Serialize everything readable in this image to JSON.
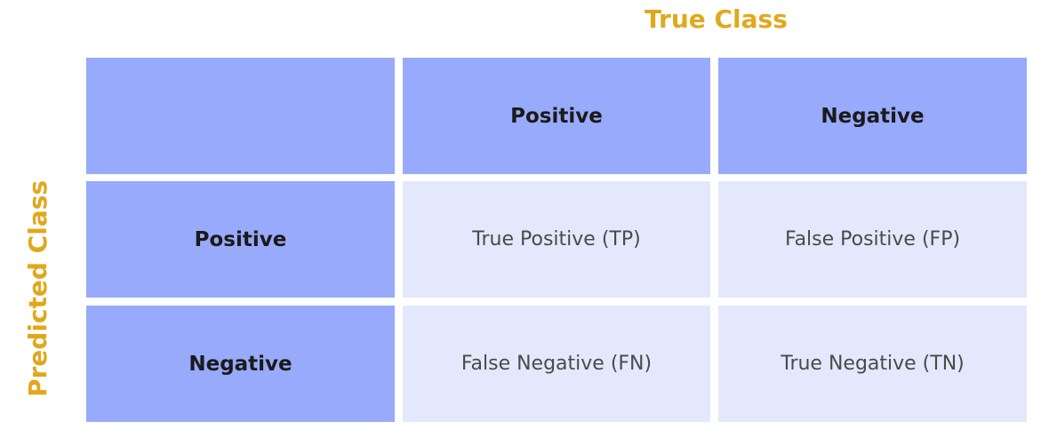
{
  "colors": {
    "axis_title": "#e0a81c",
    "header_cell": "#98aafb",
    "body_cell": "#e3e8fc",
    "header_text": "#1a1a1a",
    "body_text": "#4a4a4a"
  },
  "axis": {
    "top_title": "True Class",
    "left_title": "Predicted Class"
  },
  "columns": [
    "Positive",
    "Negative"
  ],
  "rows": [
    {
      "label": "Positive",
      "cells": [
        "True Positive (TP)",
        "False Positive (FP)"
      ]
    },
    {
      "label": "Negative",
      "cells": [
        "False Negative (FN)",
        "True Negative (TN)"
      ]
    }
  ]
}
